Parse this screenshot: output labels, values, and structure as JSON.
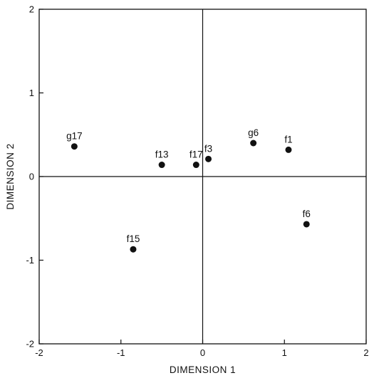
{
  "chart_data": {
    "type": "scatter",
    "title": "",
    "xlabel": "DIMENSION 1",
    "ylabel": "DIMENSION 2",
    "xlim": [
      -2,
      2
    ],
    "ylim": [
      -2,
      2
    ],
    "xticks": [
      -2,
      -1,
      0,
      1,
      2
    ],
    "yticks": [
      -2,
      -1,
      0,
      1,
      2
    ],
    "xtick_labels": [
      "-2",
      "-1",
      "0",
      "1",
      "2"
    ],
    "ytick_labels": [
      "-2",
      "-1",
      "0",
      "1",
      "2"
    ],
    "grid": false,
    "legend": "none",
    "reference_lines": {
      "x": 0,
      "y": 0
    },
    "points": [
      {
        "label": "g17",
        "x": -1.57,
        "y": 0.36
      },
      {
        "label": "f13",
        "x": -0.5,
        "y": 0.14
      },
      {
        "label": "f17",
        "x": -0.08,
        "y": 0.14
      },
      {
        "label": "f3",
        "x": 0.07,
        "y": 0.21
      },
      {
        "label": "g6",
        "x": 0.62,
        "y": 0.4
      },
      {
        "label": "f1",
        "x": 1.05,
        "y": 0.32
      },
      {
        "label": "f6",
        "x": 1.27,
        "y": -0.57
      },
      {
        "label": "f15",
        "x": -0.85,
        "y": -0.87
      }
    ],
    "colors": {
      "points": "#111111",
      "axes": "#111111"
    }
  }
}
